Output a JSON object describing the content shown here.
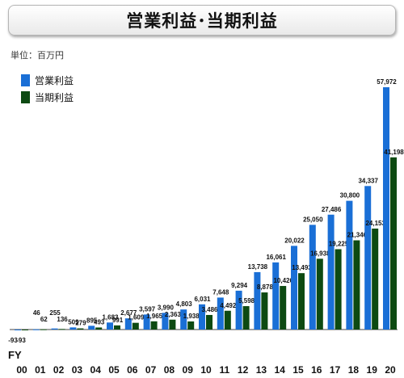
{
  "header": {
    "title": "営業利益･当期利益"
  },
  "unit_label": "単位：百万円",
  "axis_prefix": "FY",
  "colors": {
    "operating": "#1a6fd6",
    "net": "#0d4a12",
    "axis": "#444444"
  },
  "chart_data": {
    "type": "bar",
    "title": "営業利益･当期利益",
    "xlabel": "FY",
    "ylabel": "",
    "legend_position": "top-left",
    "grid": false,
    "categories": [
      "00",
      "01",
      "02",
      "03",
      "04",
      "05",
      "06",
      "07",
      "08",
      "09",
      "10",
      "11",
      "12",
      "13",
      "14",
      "15",
      "16",
      "17",
      "18",
      "19",
      "20"
    ],
    "series": [
      {
        "name": "営業利益",
        "values": [
          -93,
          46,
          255,
          509,
          895,
          1683,
          2677,
          3597,
          3990,
          4803,
          6031,
          7648,
          9294,
          13738,
          16061,
          20022,
          25050,
          27486,
          30800,
          34337,
          57972
        ]
      },
      {
        "name": "当期利益",
        "values": [
          -93,
          62,
          136,
          279,
          493,
          991,
          1609,
          1965,
          2363,
          1938,
          3486,
          4492,
          5598,
          8878,
          10426,
          13493,
          16938,
          19225,
          21346,
          24153,
          41198
        ]
      }
    ],
    "data_labels": [
      [
        "-93",
        "46",
        "255",
        "509",
        "895",
        "1,683",
        "2,677",
        "3,597",
        "3,990",
        "4,803",
        "6,031",
        "7,648",
        "9,294",
        "13,738",
        "16,061",
        "20,022",
        "25,050",
        "27,486",
        "30,800",
        "34,337",
        "57,972"
      ],
      [
        "-93",
        "62",
        "136",
        "279",
        "493",
        "991",
        "1,609",
        "1,965",
        "2,363",
        "1,938",
        "3,486",
        "4,492",
        "5,598",
        "8,878",
        "10,426",
        "13,493",
        "16,938",
        "19,225",
        "21,346",
        "24,153",
        "41,198"
      ]
    ],
    "ylim": [
      -93,
      57972
    ]
  }
}
